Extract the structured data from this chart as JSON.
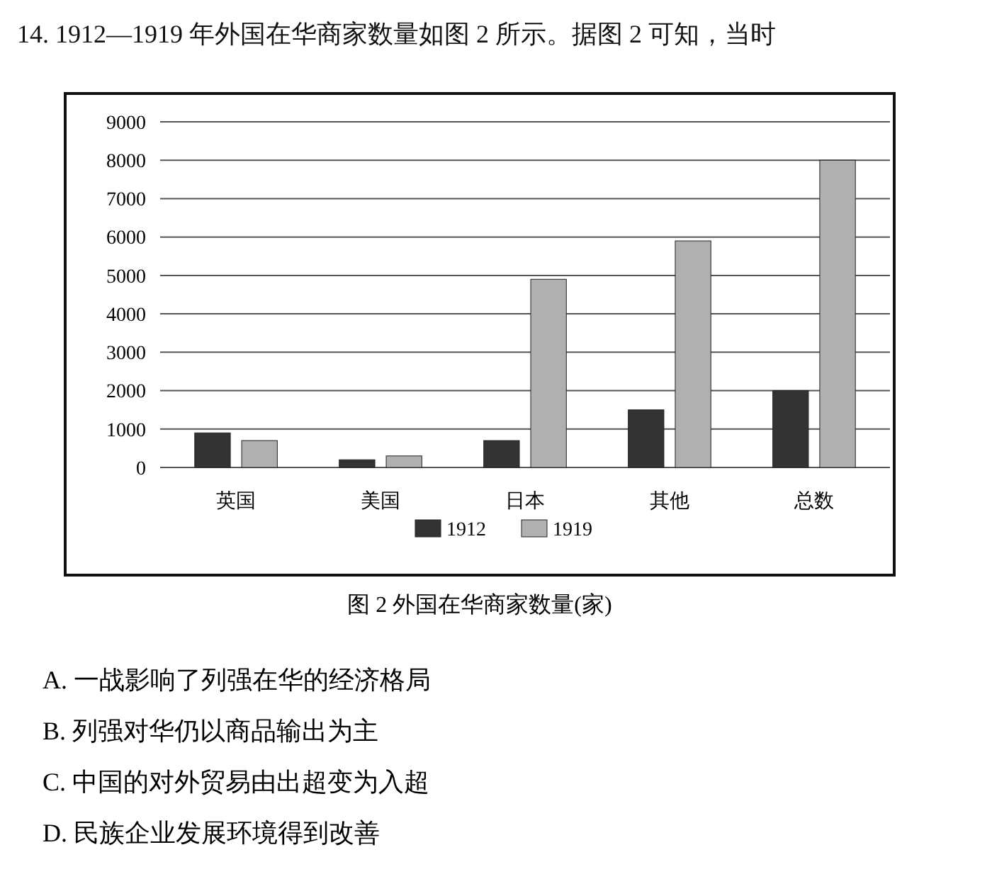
{
  "chart_data": {
    "type": "bar",
    "title": "14. 1912—1919 年外国在华商家数量如图 2 所示。据图 2 可知，当时",
    "subtitle": "图 2 外国在华商家数量(家)",
    "categories": [
      "英国",
      "美国",
      "日本",
      "其他",
      "总数"
    ],
    "series": [
      {
        "name": "1912",
        "color": "#333333",
        "values": [
          900,
          200,
          700,
          1500,
          2000
        ]
      },
      {
        "name": "1919",
        "color": "#b0b0b0",
        "values": [
          700,
          300,
          4900,
          5900,
          8000
        ]
      }
    ],
    "ylim": [
      0,
      9000
    ],
    "yticks": [
      0,
      1000,
      2000,
      3000,
      4000,
      5000,
      6000,
      7000,
      8000,
      9000
    ],
    "grid": "y",
    "legend": "bottom",
    "annotations": [
      "A. 一战影响了列强在华的经济格局",
      "B. 列强对华仍以商品输出为主",
      "C. 中国的对外贸易由出超变为入超",
      "D. 民族企业发展环境得到改善"
    ]
  }
}
